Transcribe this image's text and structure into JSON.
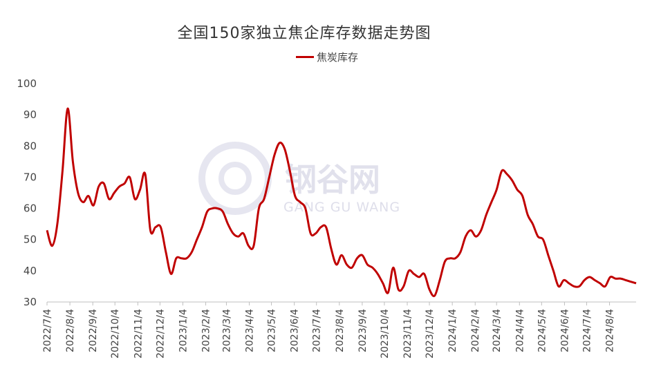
{
  "chart_data": {
    "type": "line",
    "title": "全国150家独立焦企库存数据走势图",
    "xlabel": "",
    "ylabel": "",
    "ylim": [
      30,
      100
    ],
    "yticks": [
      30,
      40,
      50,
      60,
      70,
      80,
      90,
      100
    ],
    "x_tick_labels": [
      "2022/7/4",
      "2022/8/4",
      "2022/9/4",
      "2022/10/4",
      "2022/11/4",
      "2022/12/4",
      "2023/1/4",
      "2023/2/4",
      "2023/3/4",
      "2023/4/4",
      "2023/5/4",
      "2023/6/4",
      "2023/7/4",
      "2023/8/4",
      "2023/9/4",
      "2023/10/4",
      "2023/11/4",
      "2023/12/4",
      "2024/1/4",
      "2024/2/4",
      "2024/3/4",
      "2024/4/4",
      "2024/5/4",
      "2024/6/4",
      "2024/7/4",
      "2024/8/4"
    ],
    "grid": false,
    "legend_position": "top",
    "series": [
      {
        "name": "焦炭库存",
        "color": "#c00000",
        "points": [
          [
            "2022/7/4",
            53
          ],
          [
            "2022/7/11",
            48
          ],
          [
            "2022/7/18",
            55
          ],
          [
            "2022/7/25",
            72
          ],
          [
            "2022/8/1",
            92
          ],
          [
            "2022/8/8",
            75
          ],
          [
            "2022/8/15",
            65
          ],
          [
            "2022/8/22",
            62
          ],
          [
            "2022/8/29",
            64
          ],
          [
            "2022/9/5",
            61
          ],
          [
            "2022/9/12",
            67
          ],
          [
            "2022/9/19",
            68
          ],
          [
            "2022/9/26",
            63
          ],
          [
            "2022/10/3",
            65
          ],
          [
            "2022/10/10",
            67
          ],
          [
            "2022/10/17",
            68
          ],
          [
            "2022/10/24",
            70
          ],
          [
            "2022/10/31",
            63
          ],
          [
            "2022/11/7",
            66
          ],
          [
            "2022/11/14",
            71
          ],
          [
            "2022/11/21",
            53
          ],
          [
            "2022/11/28",
            54
          ],
          [
            "2022/12/5",
            54
          ],
          [
            "2022/12/12",
            46
          ],
          [
            "2022/12/19",
            39
          ],
          [
            "2022/12/26",
            44
          ],
          [
            "2023/1/2",
            44
          ],
          [
            "2023/1/9",
            44
          ],
          [
            "2023/1/16",
            46
          ],
          [
            "2023/1/23",
            50
          ],
          [
            "2023/1/30",
            54
          ],
          [
            "2023/2/6",
            59
          ],
          [
            "2023/2/13",
            60
          ],
          [
            "2023/2/20",
            60
          ],
          [
            "2023/2/27",
            59
          ],
          [
            "2023/3/6",
            55
          ],
          [
            "2023/3/13",
            52
          ],
          [
            "2023/3/20",
            51
          ],
          [
            "2023/3/27",
            52
          ],
          [
            "2023/4/3",
            48
          ],
          [
            "2023/4/10",
            48
          ],
          [
            "2023/4/17",
            60
          ],
          [
            "2023/4/24",
            63
          ],
          [
            "2023/5/1",
            70
          ],
          [
            "2023/5/8",
            77
          ],
          [
            "2023/5/15",
            81
          ],
          [
            "2023/5/22",
            79
          ],
          [
            "2023/5/29",
            72
          ],
          [
            "2023/6/5",
            64
          ],
          [
            "2023/6/12",
            62
          ],
          [
            "2023/6/19",
            60
          ],
          [
            "2023/6/26",
            52
          ],
          [
            "2023/7/3",
            52
          ],
          [
            "2023/7/10",
            54
          ],
          [
            "2023/7/17",
            54
          ],
          [
            "2023/7/24",
            47
          ],
          [
            "2023/7/31",
            42
          ],
          [
            "2023/8/7",
            45
          ],
          [
            "2023/8/14",
            42
          ],
          [
            "2023/8/21",
            41
          ],
          [
            "2023/8/28",
            44
          ],
          [
            "2023/9/4",
            45
          ],
          [
            "2023/9/11",
            42
          ],
          [
            "2023/9/18",
            41
          ],
          [
            "2023/9/25",
            39
          ],
          [
            "2023/10/2",
            36
          ],
          [
            "2023/10/9",
            33
          ],
          [
            "2023/10/16",
            41
          ],
          [
            "2023/10/23",
            34
          ],
          [
            "2023/10/30",
            35
          ],
          [
            "2023/11/6",
            40
          ],
          [
            "2023/11/13",
            39
          ],
          [
            "2023/11/20",
            38
          ],
          [
            "2023/11/27",
            39
          ],
          [
            "2023/12/4",
            34
          ],
          [
            "2023/12/11",
            32
          ],
          [
            "2023/12/18",
            37
          ],
          [
            "2023/12/25",
            43
          ],
          [
            "2024/1/1",
            44
          ],
          [
            "2024/1/8",
            44
          ],
          [
            "2024/1/15",
            46
          ],
          [
            "2024/1/22",
            51
          ],
          [
            "2024/1/29",
            53
          ],
          [
            "2024/2/5",
            51
          ],
          [
            "2024/2/12",
            53
          ],
          [
            "2024/2/19",
            58
          ],
          [
            "2024/2/26",
            62
          ],
          [
            "2024/3/4",
            66
          ],
          [
            "2024/3/11",
            72
          ],
          [
            "2024/3/18",
            71
          ],
          [
            "2024/3/25",
            69
          ],
          [
            "2024/4/1",
            66
          ],
          [
            "2024/4/8",
            64
          ],
          [
            "2024/4/15",
            58
          ],
          [
            "2024/4/22",
            55
          ],
          [
            "2024/4/29",
            51
          ],
          [
            "2024/5/6",
            50
          ],
          [
            "2024/5/13",
            45
          ],
          [
            "2024/5/20",
            40
          ],
          [
            "2024/5/27",
            35
          ],
          [
            "2024/6/3",
            37
          ],
          [
            "2024/6/10",
            36
          ],
          [
            "2024/6/17",
            35
          ],
          [
            "2024/6/24",
            35
          ],
          [
            "2024/7/1",
            37
          ],
          [
            "2024/7/8",
            38
          ],
          [
            "2024/7/15",
            37
          ],
          [
            "2024/7/22",
            36
          ],
          [
            "2024/7/29",
            35
          ],
          [
            "2024/8/5",
            38
          ],
          [
            "2024/8/12",
            37.5
          ],
          [
            "2024/8/19",
            37.5
          ],
          [
            "2024/8/26",
            37
          ],
          [
            "2024/9/2",
            36.5
          ],
          [
            "2024/9/9",
            36
          ]
        ]
      }
    ]
  },
  "watermark": {
    "text_cn": "钢谷网",
    "text_en": "GANG GU WANG"
  }
}
